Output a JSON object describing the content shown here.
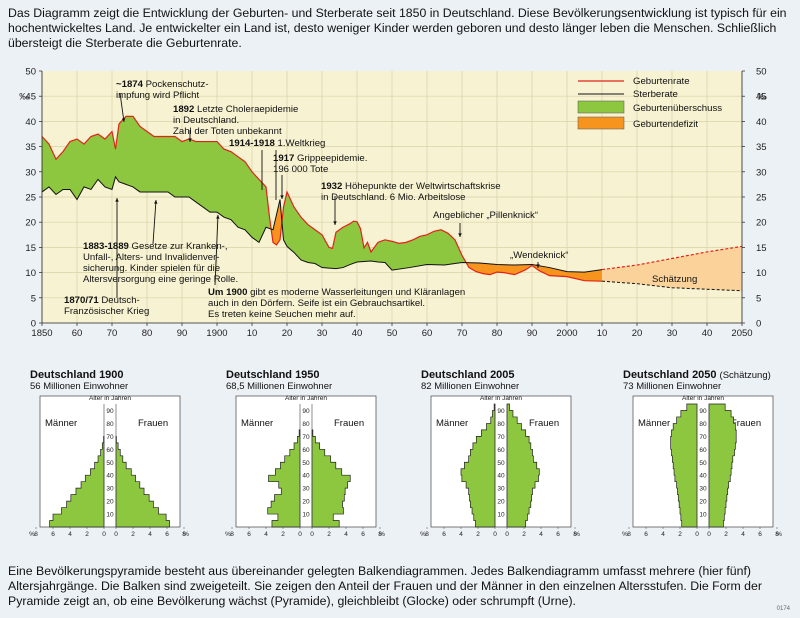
{
  "intro_text": "Das Diagramm zeigt die Entwicklung der Geburten- und Sterberate seit 1850 in Deutschland. Diese Bevölkerungsentwicklung ist typisch für ein hochentwickeltes Land. Je entwickelter ein Land ist, desto weniger Kinder werden geboren und desto länger leben die Menschen. Schließlich übersteigt die Sterberate die Geburtenrate.",
  "outro_text": "Eine Bevölkerungspyramide besteht aus übereinander gelegten Balkendiagrammen. Jedes Balkendiagramm umfasst mehrere (hier fünf) Altersjahrgänge. Die Balken sind zweigeteilt. Sie zeigen den Anteil der Frauen und der Männer in den einzelnen Altersstufen. Die Form der Pyramide zeigt an, ob eine Bevölkerung wächst (Pyramide), gleichbleibt (Glocke) oder schrumpft (Urne).",
  "image_code": "0174",
  "colors": {
    "surplus": "#8dc63f",
    "deficit": "#f7941d",
    "forecast": "#fbd39a",
    "birth_line": "#e2231a",
    "death_line": "#111111",
    "chart_bg": "#f6f2d2"
  },
  "chart_data": [
    {
      "type": "line",
      "ylabel": "‰",
      "xlim": [
        1850,
        2050
      ],
      "ylim": [
        0,
        50
      ],
      "x_ticks": [
        "1850",
        "60",
        "70",
        "80",
        "90",
        "1900",
        "10",
        "20",
        "30",
        "40",
        "50",
        "60",
        "70",
        "80",
        "90",
        "2000",
        "10",
        "20",
        "30",
        "40",
        "2050"
      ],
      "y_ticks": [
        "0",
        "5",
        "10",
        "15",
        "20",
        "25",
        "30",
        "35",
        "40",
        "45",
        "50"
      ],
      "legend": {
        "birth": "Geburtenrate",
        "death": "Sterberate",
        "surplus": "Geburtenüberschuss",
        "deficit": "Geburtendefizit"
      },
      "forecast_label": "Schätzung",
      "series": {
        "birth": {
          "x": [
            1850,
            1852,
            1854,
            1856,
            1858,
            1860,
            1862,
            1864,
            1866,
            1868,
            1870,
            1871,
            1872,
            1874,
            1876,
            1878,
            1880,
            1882,
            1884,
            1886,
            1888,
            1890,
            1892,
            1894,
            1896,
            1898,
            1900,
            1902,
            1904,
            1906,
            1908,
            1910,
            1912,
            1914,
            1915,
            1916,
            1917,
            1918,
            1919,
            1920,
            1922,
            1924,
            1926,
            1928,
            1930,
            1932,
            1933,
            1934,
            1936,
            1938,
            1939,
            1940,
            1941,
            1942,
            1943,
            1944,
            1946,
            1948,
            1950,
            1952,
            1954,
            1956,
            1958,
            1960,
            1962,
            1964,
            1966,
            1968,
            1970,
            1972,
            1974,
            1976,
            1978,
            1980,
            1982,
            1985,
            1988,
            1990,
            1992,
            1995,
            2000,
            2005,
            2010
          ],
          "y": [
            37,
            35.5,
            32.5,
            34,
            36,
            36.5,
            35.5,
            37,
            37.5,
            36.5,
            38,
            34.5,
            39.5,
            41,
            41,
            39,
            38,
            37,
            37,
            37,
            37,
            36,
            36.5,
            36,
            36,
            36,
            36,
            34.5,
            34,
            33,
            32,
            30,
            28.5,
            27,
            21,
            16,
            15.5,
            16.5,
            23,
            26,
            23,
            21,
            19.5,
            18.5,
            17.5,
            15,
            14.8,
            18,
            19,
            19.7,
            20.2,
            20.1,
            18.7,
            14.9,
            16,
            14.1,
            16,
            16.5,
            16.2,
            15.8,
            16,
            16.5,
            17.2,
            17.5,
            18.2,
            18.5,
            17.8,
            16.5,
            13.4,
            11,
            10.2,
            9.8,
            9.6,
            10.1,
            10,
            9.6,
            10.5,
            11.4,
            10.4,
            9.4,
            9.2,
            8.4,
            8.3
          ]
        },
        "death": {
          "x": [
            1850,
            1852,
            1854,
            1856,
            1858,
            1860,
            1862,
            1864,
            1866,
            1868,
            1870,
            1871,
            1872,
            1874,
            1876,
            1878,
            1880,
            1882,
            1884,
            1886,
            1888,
            1890,
            1892,
            1894,
            1896,
            1898,
            1900,
            1902,
            1904,
            1906,
            1908,
            1910,
            1912,
            1914,
            1916,
            1918,
            1919,
            1920,
            1922,
            1924,
            1926,
            1928,
            1930,
            1932,
            1934,
            1936,
            1938,
            1940,
            1942,
            1944,
            1946,
            1948,
            1950,
            1955,
            1960,
            1965,
            1970,
            1975,
            1980,
            1985,
            1990,
            1995,
            2000,
            2005,
            2010
          ],
          "y": [
            26,
            27,
            25.5,
            26.5,
            26.5,
            24.5,
            27,
            26.5,
            28.5,
            27,
            26.5,
            29,
            28,
            27.5,
            27,
            26,
            26,
            26,
            26,
            26,
            25,
            25,
            25,
            24,
            23,
            22,
            22,
            21,
            20.5,
            19,
            18.5,
            17,
            16,
            19,
            18.5,
            24.5,
            16.5,
            15.2,
            14,
            12.5,
            12,
            11.8,
            11,
            10.9,
            10.8,
            11,
            11.6,
            12.1,
            12.2,
            12.3,
            12.1,
            12,
            10.5,
            11,
            11.6,
            11.5,
            12,
            11.9,
            11.6,
            11.5,
            11.6,
            11,
            10.2,
            10.1,
            10.6
          ]
        },
        "forecast": {
          "x": [
            2010,
            2020,
            2030,
            2040,
            2050
          ],
          "birth": [
            8.3,
            7.8,
            7,
            6.7,
            6.4
          ],
          "death": [
            10.6,
            11.5,
            12.8,
            14.1,
            15.2
          ]
        }
      },
      "annotations": [
        {
          "bold": "1870/71",
          "text": " Deutsch-",
          "line2": "Französischer Krieg"
        },
        {
          "bold": "~1874",
          "text": " Pockenschutz-",
          "line2": "impfung wird Pflicht"
        },
        {
          "bold": "1883-1889",
          "text": " Gesetze zur Kranken-,",
          "line2": "Unfall-, Alters- und Invalidenver-",
          "line3": "sicherung. Kinder spielen für die",
          "line4": "Altersversorgung eine geringe Rolle."
        },
        {
          "bold": "1892",
          "text": " Letzte Choleraepidemie",
          "line2": "in Deutschland.",
          "line3": "Zahl der Toten unbekannt"
        },
        {
          "bold": "Um 1900",
          "text": " gibt es moderne Wasserleitungen und Kläranlagen",
          "line2": "auch in den Dörfern. Seife ist ein Gebrauchsartikel.",
          "line3": "Es treten keine Seuchen mehr auf."
        },
        {
          "bold": "1914-1918",
          "text": " 1.Weltkrieg"
        },
        {
          "bold": "1917",
          "text": " Grippeepidemie.",
          "line2": "196 000 Tote"
        },
        {
          "bold": "1932",
          "text": " Höhepunkte der Weltwirtschaftskrise",
          "line2": "in Deutschland. 6 Mio. Arbeitslose"
        },
        {
          "bold": "",
          "text": "Angeblicher „Pillenknick“"
        },
        {
          "bold": "",
          "text": "„Wendeknick“"
        }
      ]
    },
    {
      "type": "bar",
      "title": "Deutschland 1900",
      "subtitle": "56 Millionen Einwohner",
      "note": "",
      "axis_label": "Alter in Jahren",
      "male_label": "Männer",
      "female_label": "Frauen",
      "x_ticks": [
        "%",
        "8",
        "6",
        "4",
        "2",
        "0",
        "0",
        "2",
        "4",
        "6",
        "8",
        "%"
      ],
      "age_ticks": [
        "10",
        "20",
        "30",
        "40",
        "50",
        "60",
        "70",
        "80",
        "90"
      ],
      "male": [
        6.4,
        6.0,
        5.0,
        4.4,
        3.9,
        3.3,
        2.7,
        2.2,
        1.6,
        1.1,
        0.7,
        0.4,
        0.2,
        0.05
      ],
      "female": [
        6.3,
        5.9,
        5.0,
        4.4,
        3.9,
        3.3,
        2.8,
        2.3,
        1.8,
        1.2,
        0.8,
        0.5,
        0.25,
        0.05
      ]
    },
    {
      "type": "bar",
      "title": "Deutschland 1950",
      "subtitle": "68,5 Millionen Einwohner",
      "note": "",
      "axis_label": "Alter in Jahren",
      "male_label": "Männer",
      "female_label": "Frauen",
      "x_ticks": [
        "%",
        "8",
        "6",
        "4",
        "2",
        "0",
        "0",
        "2",
        "4",
        "6",
        "8",
        "%"
      ],
      "age_ticks": [
        "10",
        "20",
        "30",
        "40",
        "50",
        "60",
        "70",
        "80",
        "90"
      ],
      "male": [
        3.3,
        2.6,
        3.8,
        3.4,
        3.0,
        2.2,
        2.5,
        3.7,
        2.9,
        2.3,
        1.8,
        1.2,
        0.7,
        0.3,
        0.1
      ],
      "female": [
        3.2,
        2.5,
        3.7,
        3.6,
        3.8,
        3.9,
        4.2,
        4.5,
        3.5,
        2.8,
        2.2,
        1.5,
        0.9,
        0.4,
        0.1
      ]
    },
    {
      "type": "bar",
      "title": "Deutschland 2005",
      "subtitle": "82 Millionen Einwohner",
      "note": "",
      "axis_label": "Alter in Jahren",
      "male_label": "Männer",
      "female_label": "Frauen",
      "x_ticks": [
        "%",
        "8",
        "6",
        "4",
        "2",
        "0",
        "0",
        "2",
        "4",
        "6",
        "8",
        "%"
      ],
      "age_ticks": [
        "10",
        "20",
        "30",
        "40",
        "50",
        "60",
        "70",
        "80",
        "90"
      ],
      "male": [
        2.3,
        2.5,
        2.7,
        2.9,
        3.0,
        3.1,
        3.4,
        3.9,
        4.0,
        3.6,
        3.1,
        2.9,
        2.6,
        2.2,
        1.6,
        1.0,
        0.5,
        0.3,
        0.1
      ],
      "female": [
        2.2,
        2.4,
        2.6,
        2.8,
        2.9,
        3.0,
        3.3,
        3.7,
        3.8,
        3.5,
        3.1,
        3.0,
        2.8,
        2.6,
        2.2,
        1.7,
        1.2,
        0.7,
        0.3
      ]
    },
    {
      "type": "bar",
      "title": "Deutschland 2050",
      "subtitle": "73 Millionen Einwohner",
      "note": "(Schätzung)",
      "axis_label": "Alter in Jahren",
      "male_label": "Männer",
      "female_label": "Frauen",
      "x_ticks": [
        "%",
        "8",
        "6",
        "4",
        "2",
        "0",
        "0",
        "2",
        "4",
        "6",
        "8",
        "%"
      ],
      "age_ticks": [
        "10",
        "20",
        "30",
        "40",
        "50",
        "60",
        "70",
        "80",
        "90"
      ],
      "male": [
        1.8,
        1.9,
        2.0,
        2.1,
        2.2,
        2.3,
        2.4,
        2.6,
        2.7,
        2.8,
        2.9,
        3.0,
        3.1,
        3.1,
        3.0,
        2.8,
        2.4,
        1.9,
        1.2
      ],
      "female": [
        1.7,
        1.8,
        1.9,
        2.0,
        2.1,
        2.2,
        2.3,
        2.5,
        2.6,
        2.7,
        2.8,
        3.0,
        3.1,
        3.2,
        3.2,
        3.1,
        2.9,
        2.6,
        1.9
      ]
    }
  ]
}
